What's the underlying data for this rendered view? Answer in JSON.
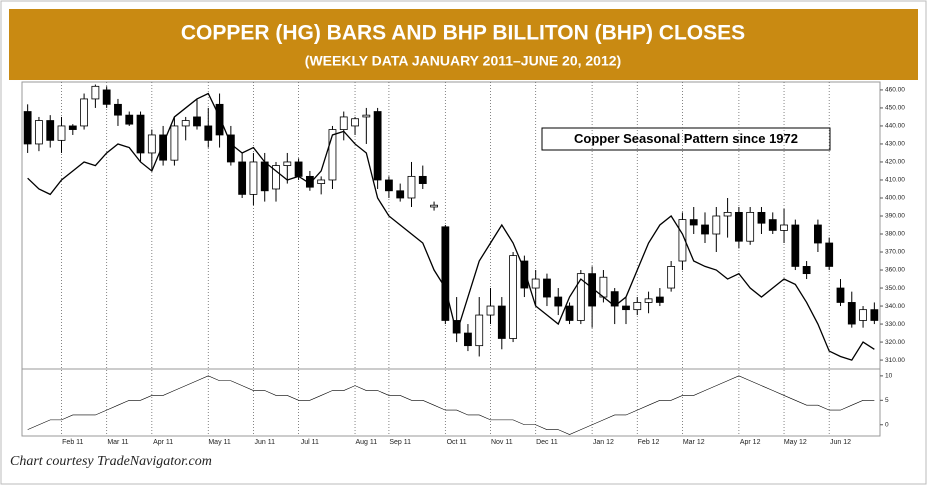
{
  "chart_data": {
    "type": "candlestick",
    "title": "COPPER (HG) BARS AND BHP BILLITON (BHP) CLOSES",
    "subtitle": "(WEEKLY DATA JANUARY 2011–JUNE 20, 2012)",
    "credit": "Chart courtesy TradeNavigator.com",
    "categories": [
      null,
      null,
      null,
      null,
      "Feb 11",
      null,
      null,
      null,
      "Mar 11",
      null,
      null,
      null,
      "Apr 11",
      null,
      null,
      null,
      null,
      "May 11",
      null,
      null,
      null,
      "Jun 11",
      null,
      null,
      null,
      "Jul 11",
      null,
      null,
      null,
      null,
      "Aug 11",
      null,
      null,
      "Sep 11",
      null,
      null,
      null,
      null,
      "Oct 11",
      null,
      null,
      null,
      "Nov 11",
      null,
      null,
      null,
      "Dec 11",
      null,
      null,
      null,
      null,
      "Jan 12",
      null,
      null,
      null,
      "Feb 12",
      null,
      null,
      null,
      "Mar 12",
      null,
      null,
      null,
      null,
      "Apr 12",
      null,
      null,
      null,
      "May 12",
      null,
      null,
      null,
      "Jun 12",
      null,
      null,
      null
    ],
    "open": [
      448,
      430,
      443,
      432,
      440,
      440,
      455,
      460,
      452,
      446,
      446,
      425,
      435,
      421,
      440,
      445,
      440,
      452,
      435,
      420,
      402,
      420,
      405,
      418,
      420,
      412,
      408,
      410,
      438,
      440,
      445,
      448,
      410,
      404,
      400,
      412,
      395,
      384,
      332,
      325,
      318,
      335,
      340,
      322,
      365,
      350,
      355,
      345,
      340,
      332,
      358,
      345,
      348,
      340,
      338,
      342,
      345,
      350,
      365,
      388,
      385,
      380,
      390,
      392,
      376,
      392,
      388,
      382,
      385,
      362,
      385,
      375,
      350,
      342,
      332,
      338
    ],
    "high": [
      452,
      445,
      446,
      445,
      441,
      458,
      463,
      462,
      455,
      448,
      448,
      438,
      440,
      445,
      445,
      455,
      450,
      458,
      440,
      425,
      425,
      425,
      420,
      425,
      422,
      415,
      412,
      440,
      448,
      445,
      450,
      450,
      412,
      408,
      420,
      418,
      398,
      385,
      345,
      330,
      345,
      350,
      345,
      370,
      368,
      360,
      358,
      350,
      342,
      360,
      362,
      360,
      350,
      345,
      345,
      348,
      350,
      365,
      392,
      395,
      392,
      395,
      400,
      395,
      395,
      395,
      392,
      394,
      388,
      365,
      388,
      378,
      355,
      348,
      340,
      342
    ],
    "low": [
      425,
      426,
      428,
      425,
      435,
      438,
      450,
      450,
      440,
      440,
      420,
      415,
      418,
      418,
      432,
      438,
      428,
      428,
      418,
      400,
      396,
      398,
      398,
      408,
      410,
      404,
      402,
      405,
      432,
      435,
      430,
      405,
      400,
      398,
      395,
      405,
      393,
      330,
      320,
      315,
      312,
      330,
      316,
      320,
      345,
      340,
      340,
      335,
      330,
      330,
      328,
      342,
      330,
      330,
      335,
      336,
      340,
      348,
      360,
      380,
      375,
      370,
      378,
      372,
      374,
      380,
      380,
      375,
      360,
      355,
      370,
      360,
      340,
      328,
      328,
      330
    ],
    "close": [
      430,
      443,
      432,
      440,
      438,
      455,
      462,
      452,
      446,
      441,
      425,
      435,
      421,
      440,
      443,
      440,
      432,
      435,
      420,
      402,
      420,
      404,
      418,
      420,
      412,
      406,
      410,
      438,
      445,
      444,
      446,
      410,
      404,
      400,
      412,
      408,
      396,
      332,
      325,
      318,
      335,
      340,
      322,
      368,
      350,
      355,
      345,
      340,
      332,
      358,
      340,
      356,
      340,
      338,
      342,
      344,
      342,
      362,
      388,
      385,
      380,
      390,
      392,
      376,
      392,
      386,
      382,
      385,
      362,
      358,
      375,
      362,
      342,
      330,
      338,
      332
    ],
    "line": {
      "name": "Copper Seasonal Pattern since 1972",
      "color": "#000000",
      "values": [
        411,
        405,
        402,
        410,
        415,
        420,
        418,
        425,
        430,
        428,
        420,
        415,
        430,
        445,
        450,
        455,
        458,
        445,
        430,
        425,
        428,
        420,
        415,
        410,
        412,
        408,
        415,
        435,
        437,
        430,
        425,
        400,
        390,
        385,
        380,
        375,
        360,
        350,
        325,
        345,
        365,
        375,
        385,
        375,
        360,
        340,
        335,
        330,
        345,
        355,
        350,
        345,
        340,
        345,
        360,
        375,
        385,
        390,
        380,
        365,
        362,
        360,
        355,
        358,
        350,
        345,
        350,
        355,
        352,
        342,
        330,
        315,
        312,
        310,
        320,
        316
      ]
    },
    "ylim": [
      305.6,
      464.4
    ],
    "yticks": [
      {
        "value": 310,
        "label": "310.00"
      },
      {
        "value": 320,
        "label": "320.00"
      },
      {
        "value": 330,
        "label": "330.00"
      },
      {
        "value": 340,
        "label": "340.00"
      },
      {
        "value": 350,
        "label": "350.00"
      },
      {
        "value": 360,
        "label": "360.00"
      },
      {
        "value": 370,
        "label": "370.00"
      },
      {
        "value": 380,
        "label": "380.00"
      },
      {
        "value": 390,
        "label": "390.00"
      },
      {
        "value": 400,
        "label": "400.00"
      },
      {
        "value": 410,
        "label": "410.00"
      },
      {
        "value": 420,
        "label": "420.00"
      },
      {
        "value": 430,
        "label": "430.00"
      },
      {
        "value": 440,
        "label": "440.00"
      },
      {
        "value": 450,
        "label": "450.00"
      },
      {
        "value": 460,
        "label": "460.00"
      }
    ],
    "lower_panel": {
      "values": [
        -1,
        0,
        1,
        1,
        2,
        2,
        2,
        3,
        4,
        5,
        5,
        6,
        6,
        7,
        8,
        9,
        10,
        9,
        9,
        8,
        7,
        7,
        6,
        6,
        5,
        5,
        6,
        7,
        7,
        8,
        7,
        7,
        6,
        6,
        5,
        5,
        4,
        3,
        3,
        2,
        2,
        1,
        1,
        1,
        0,
        0,
        -1,
        -1,
        -2,
        -1,
        0,
        1,
        2,
        2,
        3,
        4,
        5,
        5,
        6,
        6,
        7,
        8,
        9,
        10,
        9,
        8,
        7,
        6,
        5,
        4,
        4,
        3,
        3,
        4,
        5,
        5
      ],
      "ylim": [
        -2.3,
        11.2
      ],
      "yticks": [
        0,
        5,
        10
      ]
    }
  }
}
